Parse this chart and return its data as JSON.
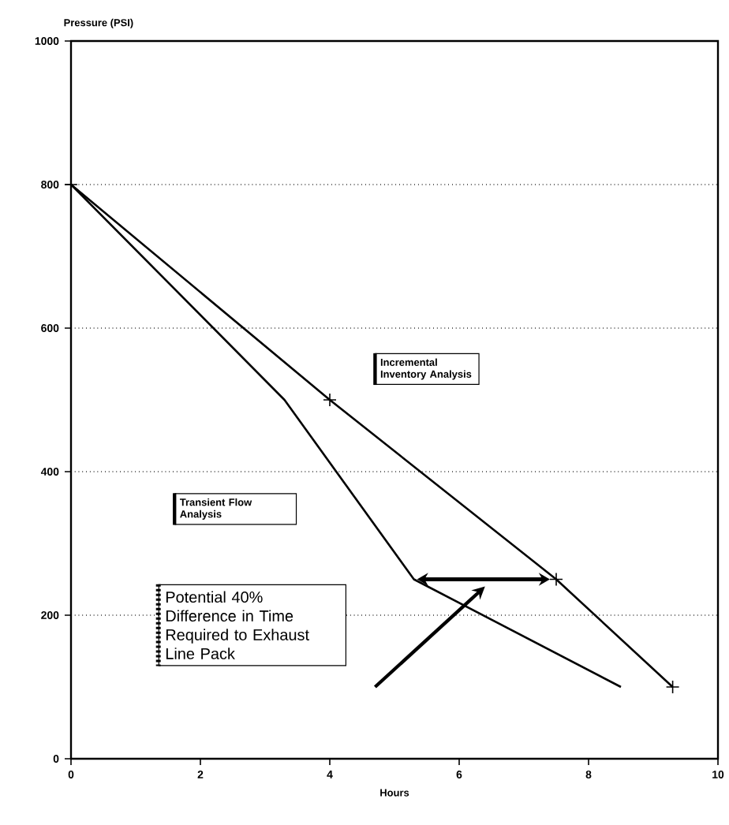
{
  "chart_data": {
    "type": "line",
    "xlabel": "Hours",
    "ylabel": "Pressure (PSI)",
    "xlim": [
      0,
      10
    ],
    "ylim": [
      0,
      1000
    ],
    "xticks": [
      0,
      2,
      4,
      6,
      8,
      10
    ],
    "yticks": [
      0,
      200,
      400,
      600,
      800,
      1000
    ],
    "grid": "y",
    "legend": false,
    "line_style": "solid",
    "series": [
      {
        "name": "Incremental Inventory Analysis",
        "color": "#000000",
        "x": [
          0,
          4,
          7.5,
          9.3
        ],
        "values": [
          800,
          500,
          250,
          100
        ],
        "marker": "cross"
      },
      {
        "name": "Transient Flow Analysis",
        "color": "#000000",
        "x": [
          0,
          3.3,
          5.3,
          8.5
        ],
        "values": [
          800,
          500,
          250,
          100
        ],
        "marker": "none"
      }
    ],
    "annotations": [
      "Potential 40% Difference in Time Required to Exhaust Line Pack"
    ]
  }
}
